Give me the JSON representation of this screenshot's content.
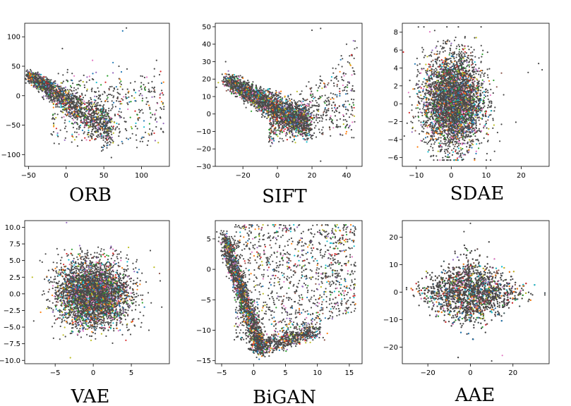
{
  "chart_data": [
    {
      "type": "scatter",
      "title": "ORB",
      "xlim": [
        -55,
        137
      ],
      "ylim": [
        -120,
        123
      ],
      "xticks": [
        -50,
        0,
        50,
        100
      ],
      "yticks": [
        -100,
        -50,
        0,
        50,
        100
      ],
      "point_count": 2200,
      "cloud": "diagonal band from (-50,35) falling to about (60,-60), sparse outliers extending toward (130,0) and (80,115)",
      "series": [
        {
          "name": "",
          "x": [
            -50,
            -40,
            -30,
            -20,
            -10,
            0,
            10,
            20,
            30,
            40,
            50,
            60,
            70,
            80,
            90,
            100,
            110,
            120,
            130,
            75,
            80,
            70,
            35,
            60
          ],
          "y": [
            35,
            30,
            22,
            15,
            5,
            -5,
            -15,
            -22,
            -30,
            -38,
            -45,
            -55,
            -60,
            -70,
            -75,
            -80,
            -40,
            -30,
            -10,
            110,
            115,
            50,
            60,
            -105
          ]
        }
      ]
    },
    {
      "type": "scatter",
      "title": "SIFT",
      "xlim": [
        -36,
        49
      ],
      "ylim": [
        -30,
        52
      ],
      "xticks": [
        -20,
        0,
        20,
        40
      ],
      "yticks": [
        -30,
        -20,
        -10,
        0,
        10,
        20,
        30,
        40,
        50
      ],
      "point_count": 3000,
      "cloud": "dense curved band from (-30,20) down to (15,-10), sparse points rising toward (45,40)",
      "series": [
        {
          "name": "",
          "x": [
            -30,
            -25,
            -20,
            -15,
            -10,
            -5,
            0,
            5,
            10,
            15,
            20,
            25,
            30,
            35,
            40,
            45,
            25
          ],
          "y": [
            20,
            16,
            12,
            8,
            5,
            2,
            -3,
            -6,
            -8,
            -10,
            -8,
            0,
            10,
            25,
            35,
            40,
            -28
          ]
        }
      ]
    },
    {
      "type": "scatter",
      "title": "SDAE",
      "xlim": [
        -14,
        28
      ],
      "ylim": [
        -7,
        9
      ],
      "xticks": [
        -10,
        0,
        10,
        20
      ],
      "yticks": [
        -6,
        -4,
        -2,
        0,
        2,
        4,
        6,
        8
      ],
      "point_count": 4000,
      "cloud": "dense roughly vertical blob centered near (0,0), spanning x -10 to 15 and y -6 to 8.5",
      "series": [
        {
          "name": "",
          "x": [
            -10,
            -5,
            0,
            5,
            10,
            15,
            22,
            25,
            26
          ],
          "y": [
            -1,
            4,
            0,
            -4,
            2,
            -1,
            3,
            4.5,
            3.8
          ]
        }
      ]
    },
    {
      "type": "scatter",
      "title": "VAE",
      "xlim": [
        -9,
        10
      ],
      "ylim": [
        -10.5,
        11
      ],
      "xticks": [
        -5,
        0,
        5
      ],
      "yticks": [
        -10.0,
        -7.5,
        -5.0,
        -2.5,
        0.0,
        2.5,
        5.0,
        7.5,
        10.0
      ],
      "point_count": 4000,
      "cloud": "dense elliptical blob centered at (0,0), x from -7 to 9, y from -9.5 to 10.7",
      "series": [
        {
          "name": "",
          "x": [
            -7,
            -5,
            0,
            5,
            8,
            9,
            -3.5,
            -3
          ],
          "y": [
            2,
            -3,
            0,
            1,
            4,
            -2,
            10.7,
            -9.6
          ]
        }
      ]
    },
    {
      "type": "scatter",
      "title": "BiGAN",
      "xlim": [
        -6,
        17
      ],
      "ylim": [
        -15.5,
        8
      ],
      "xticks": [
        -5,
        0,
        5,
        10,
        15
      ],
      "yticks": [
        -15,
        -10,
        -5,
        0,
        5
      ],
      "point_count": 3500,
      "cloud": "dense curved arm from (-4.5,5) down to (1,-13), a band rising to (10,-10), with a sparse triangular fill up to (15,7)",
      "series": [
        {
          "name": "",
          "x": [
            -4.5,
            -4,
            -3,
            -2,
            -1,
            0,
            1,
            2,
            5,
            8,
            10,
            15,
            12,
            16
          ],
          "y": [
            5,
            1,
            -3,
            -6,
            -9,
            -11,
            -13,
            -12,
            -11,
            -11,
            -10,
            6,
            7,
            -5
          ]
        }
      ]
    },
    {
      "type": "scatter",
      "title": "AAE",
      "xlim": [
        -32,
        37
      ],
      "ylim": [
        -26,
        26
      ],
      "xticks": [
        -20,
        0,
        20
      ],
      "yticks": [
        -20,
        -10,
        0,
        10,
        20
      ],
      "point_count": 4000,
      "cloud": "diamond-shaped blob centered at (0,0), x from -30 to 35, y from -25 to 25",
      "series": [
        {
          "name": "",
          "x": [
            -30,
            -20,
            -10,
            0,
            10,
            20,
            35,
            0,
            10
          ],
          "y": [
            1,
            0,
            5,
            25,
            -5,
            -3,
            -1,
            -20,
            -25
          ]
        }
      ]
    }
  ],
  "colors": {
    "dominant": "#4a4a4a",
    "palette": [
      "#1f77b4",
      "#ff7f0e",
      "#2ca02c",
      "#d62728",
      "#9467bd",
      "#8c564b",
      "#e377c2",
      "#bcbd22",
      "#17becf"
    ]
  }
}
